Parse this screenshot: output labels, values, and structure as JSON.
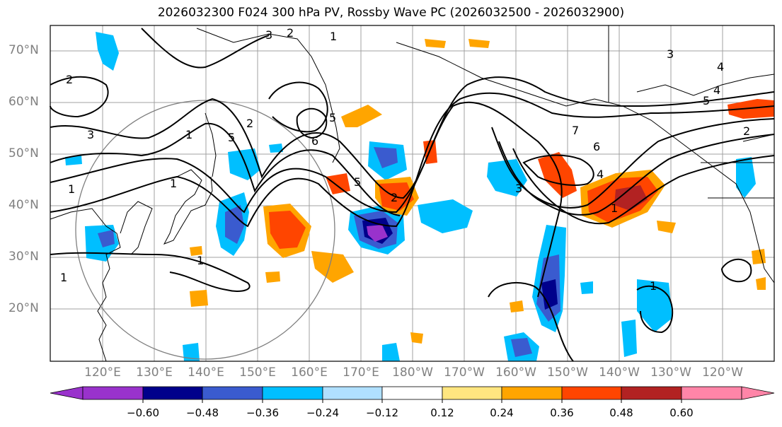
{
  "title": "2026032300 F024 300 hPa PV, Rossby Wave PC (2026032500 - 2026032900)",
  "map": {
    "lat_labels": [
      "70°N",
      "60°N",
      "50°N",
      "40°N",
      "30°N",
      "20°N"
    ],
    "lon_labels": [
      "120°E",
      "130°E",
      "140°E",
      "150°E",
      "160°E",
      "170°E",
      "180°W",
      "170°W",
      "160°W",
      "150°W",
      "140°W",
      "130°W",
      "120°W"
    ],
    "contour_labels": [
      "1",
      "2",
      "3",
      "4",
      "5",
      "6",
      "1",
      "2",
      "3",
      "4",
      "5",
      "1",
      "2",
      "5",
      "6",
      "7",
      "4",
      "5",
      "1",
      "2",
      "3",
      "1",
      "1",
      "1",
      "2",
      "3",
      "1"
    ],
    "grid": true
  },
  "colorbar": {
    "ticks": [
      "−0.60",
      "−0.48",
      "−0.36",
      "−0.24",
      "−0.12",
      "0.12",
      "0.24",
      "0.36",
      "0.48",
      "0.60"
    ],
    "colors": [
      "#9932cc",
      "#00008b",
      "#3a5bcf",
      "#00bfff",
      "#b0e0ff",
      "#ffffff",
      "#ffe680",
      "#ffa500",
      "#ff4500",
      "#b22222",
      "#ff85a8"
    ]
  },
  "colors": {
    "neg_strong": "#9932cc",
    "neg_dark": "#00008b",
    "neg_mid": "#3a5bcf",
    "neg_light": "#00bfff",
    "neg_pale": "#b0e0ff",
    "pos_pale": "#ffe680",
    "pos_light": "#ffa500",
    "pos_mid": "#ff4500",
    "pos_dark": "#b22222",
    "pos_strong": "#ff85a8"
  }
}
